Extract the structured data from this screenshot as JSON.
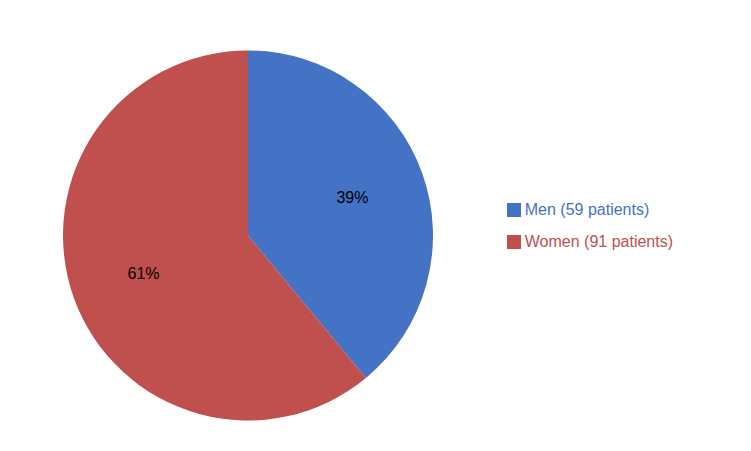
{
  "chart_data": {
    "type": "pie",
    "categories": [
      "Men (59 patients)",
      "Women (91 patients)"
    ],
    "values": [
      39,
      61
    ],
    "value_labels": [
      "39%",
      "61%"
    ],
    "colors": [
      "#4472C4",
      "#C0504D"
    ],
    "data_labels": true,
    "legend": "right"
  }
}
